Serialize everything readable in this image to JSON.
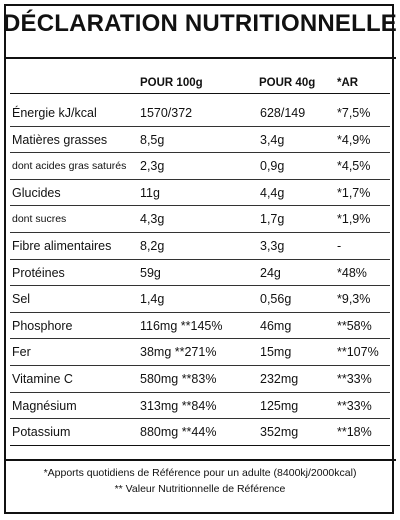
{
  "title": "DÉCLARATION NUTRITIONNELLE",
  "headers": {
    "per100": "POUR 100g",
    "per40": "POUR 40g",
    "ar": "*AR"
  },
  "rows": [
    {
      "name": "Énergie kJ/kcal",
      "per100": "1570/372",
      "per40": "628/149",
      "ar": "*7,5%"
    },
    {
      "name": "Matières grasses",
      "per100": "8,5g",
      "per40": "3,4g",
      "ar": "*4,9%"
    },
    {
      "name": "dont acides gras saturés",
      "per100": "2,3g",
      "per40": "0,9g",
      "ar": "*4,5%"
    },
    {
      "name": "Glucides",
      "per100": "11g",
      "per40": "4,4g",
      "ar": "*1,7%"
    },
    {
      "name": "dont sucres",
      "per100": "4,3g",
      "per40": "1,7g",
      "ar": "*1,9%"
    },
    {
      "name": "Fibre alimentaires",
      "per100": "8,2g",
      "per40": "3,3g",
      "ar": "-"
    },
    {
      "name": "Protéines",
      "per100": "59g",
      "per40": "24g",
      "ar": "*48%"
    },
    {
      "name": "Sel",
      "per100": "1,4g",
      "per40": "0,56g",
      "ar": "*9,3%"
    },
    {
      "name": "Phosphore",
      "per100": "116mg **145%",
      "per40": "46mg",
      "ar": "**58%"
    },
    {
      "name": "Fer",
      "per100": "38mg **271%",
      "per40": "15mg",
      "ar": "**107%"
    },
    {
      "name": "Vitamine C",
      "per100": "580mg **83%",
      "per40": "232mg",
      "ar": "**33%"
    },
    {
      "name": "Magnésium",
      "per100": "313mg **84%",
      "per40": "125mg",
      "ar": "**33%"
    },
    {
      "name": "Potassium",
      "per100": "880mg **44%",
      "per40": "352mg",
      "ar": "**18%"
    }
  ],
  "footnotes": {
    "ar": "*Apports quotidiens de Référence pour un adulte (8400kj/2000kcal)",
    "vnr": "** Valeur Nutritionnelle de Référence"
  }
}
